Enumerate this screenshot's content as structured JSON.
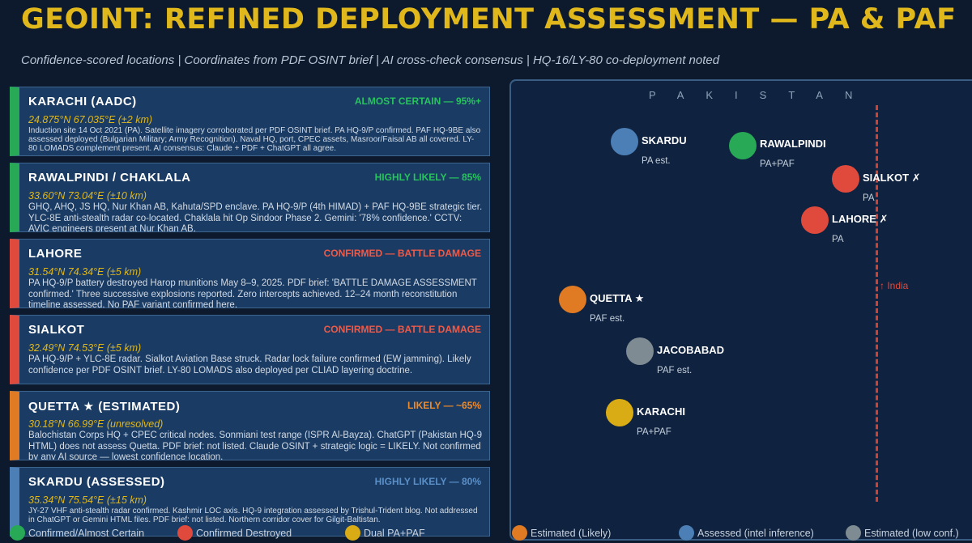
{
  "header": {
    "title": "GEOINT: REFINED DEPLOYMENT ASSESSMENT — PA & PAF",
    "subtitle": "Confidence-scored locations | Coordinates from PDF OSINT brief | AI cross-check consensus | HQ-16/LY-80 co-deployment noted"
  },
  "colors": {
    "confirmed": "#27a955",
    "destroyed": "#e04a3c",
    "dual": "#d9ab14",
    "estimated": "#e07b23",
    "assessed": "#4c7fb6",
    "low": "#7f8b92",
    "title": "#e0b81c"
  },
  "cards": [
    {
      "name": "KARACHI (AADC)",
      "confidence": "ALMOST CERTAIN — 95%+",
      "coords": "24.875°N  67.035°E  (±2 km)",
      "desc": "Induction site 14 Oct 2021 (PA). Satellite imagery corroborated per PDF OSINT brief. PA HQ-9/P confirmed. PAF HQ-9BE also assessed deployed (Bulgarian Military; Army Recognition). Naval HQ, port, CPEC assets, Masroor/Faisal AB all covered. LY-80 LOMADS complement present. AI consensus: Claude + PDF + ChatGPT all agree."
    },
    {
      "name": "RAWALPINDI / CHAKLALA",
      "confidence": "HIGHLY LIKELY — 85%",
      "coords": "33.60°N  73.04°E  (±10 km)",
      "desc": "GHQ, AHQ, JS HQ, Nur Khan AB, Kahuta/SPD enclave. PA HQ-9/P (4th HIMAD) + PAF HQ-9BE strategic tier. YLC-8E anti-stealth radar co-located. Chaklala hit Op Sindoor Phase 2. Gemini: '78% confidence.' CCTV: AVIC engineers present at Nur Khan AB."
    },
    {
      "name": "LAHORE",
      "confidence": "CONFIRMED — BATTLE DAMAGE",
      "coords": "31.54°N  74.34°E  (±5 km)",
      "desc": "PA HQ-9/P battery destroyed Harop munitions May 8–9, 2025. PDF brief: 'BATTLE DAMAGE ASSESSMENT confirmed.' Three successive explosions reported. Zero intercepts achieved. 12–24 month reconstitution timeline assessed. No PAF variant confirmed here."
    },
    {
      "name": "SIALKOT",
      "confidence": "CONFIRMED — BATTLE DAMAGE",
      "coords": "32.49°N  74.53°E  (±5 km)",
      "desc": "PA HQ-9/P + YLC-8E radar. Sialkot Aviation Base struck. Radar lock failure confirmed (EW jamming). Likely confidence per PDF OSINT brief. LY-80 LOMADS also deployed per CLIAD layering doctrine."
    },
    {
      "name": "QUETTA ★ (ESTIMATED)",
      "confidence": "LIKELY — ~65%",
      "coords": "30.18°N  66.99°E  (unresolved)",
      "desc": "Balochistan Corps HQ + CPEC critical nodes. Sonmiani test range (ISPR Al-Bayza). ChatGPT (Pakistan HQ-9 HTML) does not assess Quetta. PDF brief: not listed. Claude OSINT + strategic logic = LIKELY. Not confirmed by any AI source — lowest confidence location."
    },
    {
      "name": "SKARDU (ASSESSED)",
      "confidence": "HIGHLY LIKELY — 80%",
      "coords": "35.34°N  75.54°E  (±15 km)",
      "desc": "JY-27 VHF anti-stealth radar confirmed. Kashmir LOC axis. HQ-9 integration assessed by Trishul-Trident blog. Not addressed in ChatGPT or Gemini HTML files. PDF brief: not listed. Northern corridor cover for Gilgit-Baltistan."
    }
  ],
  "map": {
    "country_label": "PAKISTAN",
    "india_label": "↑ India",
    "markers": [
      {
        "label": "SKARDU",
        "sub": "PA est."
      },
      {
        "label": "RAWALPINDI",
        "sub": "PA+PAF"
      },
      {
        "label": "SIALKOT ✗",
        "sub": "PA"
      },
      {
        "label": "LAHORE ✗",
        "sub": "PA"
      },
      {
        "label": "QUETTA ★",
        "sub": "PAF est."
      },
      {
        "label": "JACOBABAD",
        "sub": "PAF est."
      },
      {
        "label": "KARACHI",
        "sub": "PA+PAF"
      }
    ]
  },
  "legend": [
    {
      "label": "Confirmed/Almost Certain"
    },
    {
      "label": "Confirmed Destroyed"
    },
    {
      "label": "Dual PA+PAF"
    },
    {
      "label": "Estimated (Likely)"
    },
    {
      "label": "Assessed (intel inference)"
    },
    {
      "label": "Estimated (low conf.)"
    }
  ]
}
